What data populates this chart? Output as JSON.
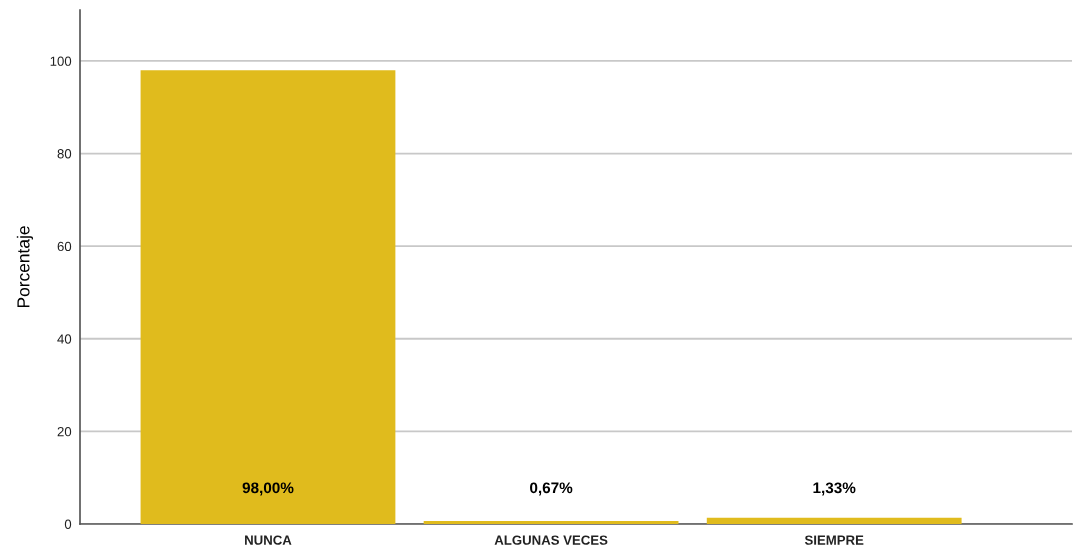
{
  "chart_data": {
    "type": "bar",
    "ylabel": "Porcentaje",
    "categories": [
      "NUNCA",
      "ALGUNAS VECES",
      "SIEMPRE"
    ],
    "values": [
      98.0,
      0.67,
      1.33
    ],
    "color": "#e0bb1d",
    "value_labels": [
      "98,00%",
      "0,67%",
      "1,33%"
    ],
    "ylim": [
      0,
      111
    ],
    "yticks": [
      0,
      20,
      40,
      60,
      80,
      100
    ],
    "grid": "y",
    "legend": false
  }
}
